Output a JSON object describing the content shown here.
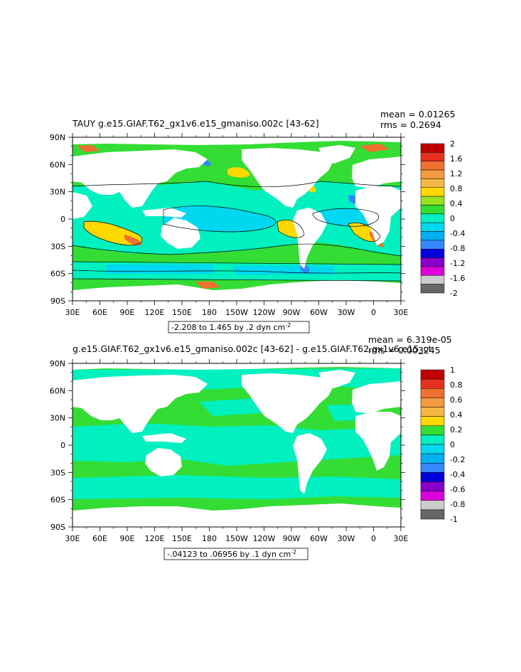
{
  "chart_data": [
    {
      "type": "heatmap",
      "title": "TAUY g.e15.GIAF.T62_gx1v6.e15_gmaniso.002c [43-62]",
      "stats": {
        "mean": "mean = 0.01265",
        "rms": "rms = 0.2694"
      },
      "range_label": "-2.208 to 1.465 by .2 dyn cm-2",
      "xticks": [
        "30E",
        "60E",
        "90E",
        "120E",
        "150E",
        "180",
        "150W",
        "120W",
        "90W",
        "60W",
        "30W",
        "0",
        "30E"
      ],
      "yticks": [
        "90N",
        "60N",
        "30N",
        "0",
        "30S",
        "60S",
        "90S"
      ],
      "xlim_deg_east": [
        30,
        390
      ],
      "ylim_deg": [
        -90,
        90
      ],
      "colorbar": {
        "labels": [
          "2",
          "1.6",
          "1.2",
          "0.8",
          "0.4",
          "0",
          "-0.4",
          "-0.8",
          "-1.2",
          "-1.6",
          "-2"
        ],
        "colors": [
          "#c00000",
          "#e53020",
          "#f07030",
          "#f49a40",
          "#f5b845",
          "#ffd800",
          "#99e020",
          "#33dd33",
          "#00f0c0",
          "#00d8f0",
          "#00b0f0",
          "#3388ff",
          "#0000dd",
          "#8800cc",
          "#dd00dd",
          "#cccccc",
          "#666666"
        ]
      }
    },
    {
      "type": "heatmap",
      "title": "g.e15.GIAF.T62_gx1v6.e15_gmaniso.002c [43-62] - g.e15.GIAF.T62.gx1v6.e15_ct",
      "stats": {
        "mean": "mean = 6.319e-05",
        "rms": "rms = 0.003245"
      },
      "range_label": "-.04123 to .06956 by .1 dyn cm-2",
      "xticks": [
        "30E",
        "60E",
        "90E",
        "120E",
        "150E",
        "180",
        "150W",
        "120W",
        "90W",
        "60W",
        "30W",
        "0",
        "30E"
      ],
      "yticks": [
        "90N",
        "60N",
        "30N",
        "0",
        "30S",
        "60S",
        "90S"
      ],
      "xlim_deg_east": [
        30,
        390
      ],
      "ylim_deg": [
        -90,
        90
      ],
      "colorbar": {
        "labels": [
          "1",
          "0.8",
          "0.6",
          "0.4",
          "0.2",
          "0",
          "-0.2",
          "-0.4",
          "-0.6",
          "-0.8",
          "-1"
        ],
        "colors": [
          "#c00000",
          "#e53020",
          "#f07030",
          "#f49a40",
          "#f5b845",
          "#ffd800",
          "#33dd33",
          "#00f0c0",
          "#00d8f0",
          "#00b0f0",
          "#3388ff",
          "#0000dd",
          "#8800cc",
          "#dd00dd",
          "#cccccc",
          "#666666"
        ]
      }
    }
  ]
}
